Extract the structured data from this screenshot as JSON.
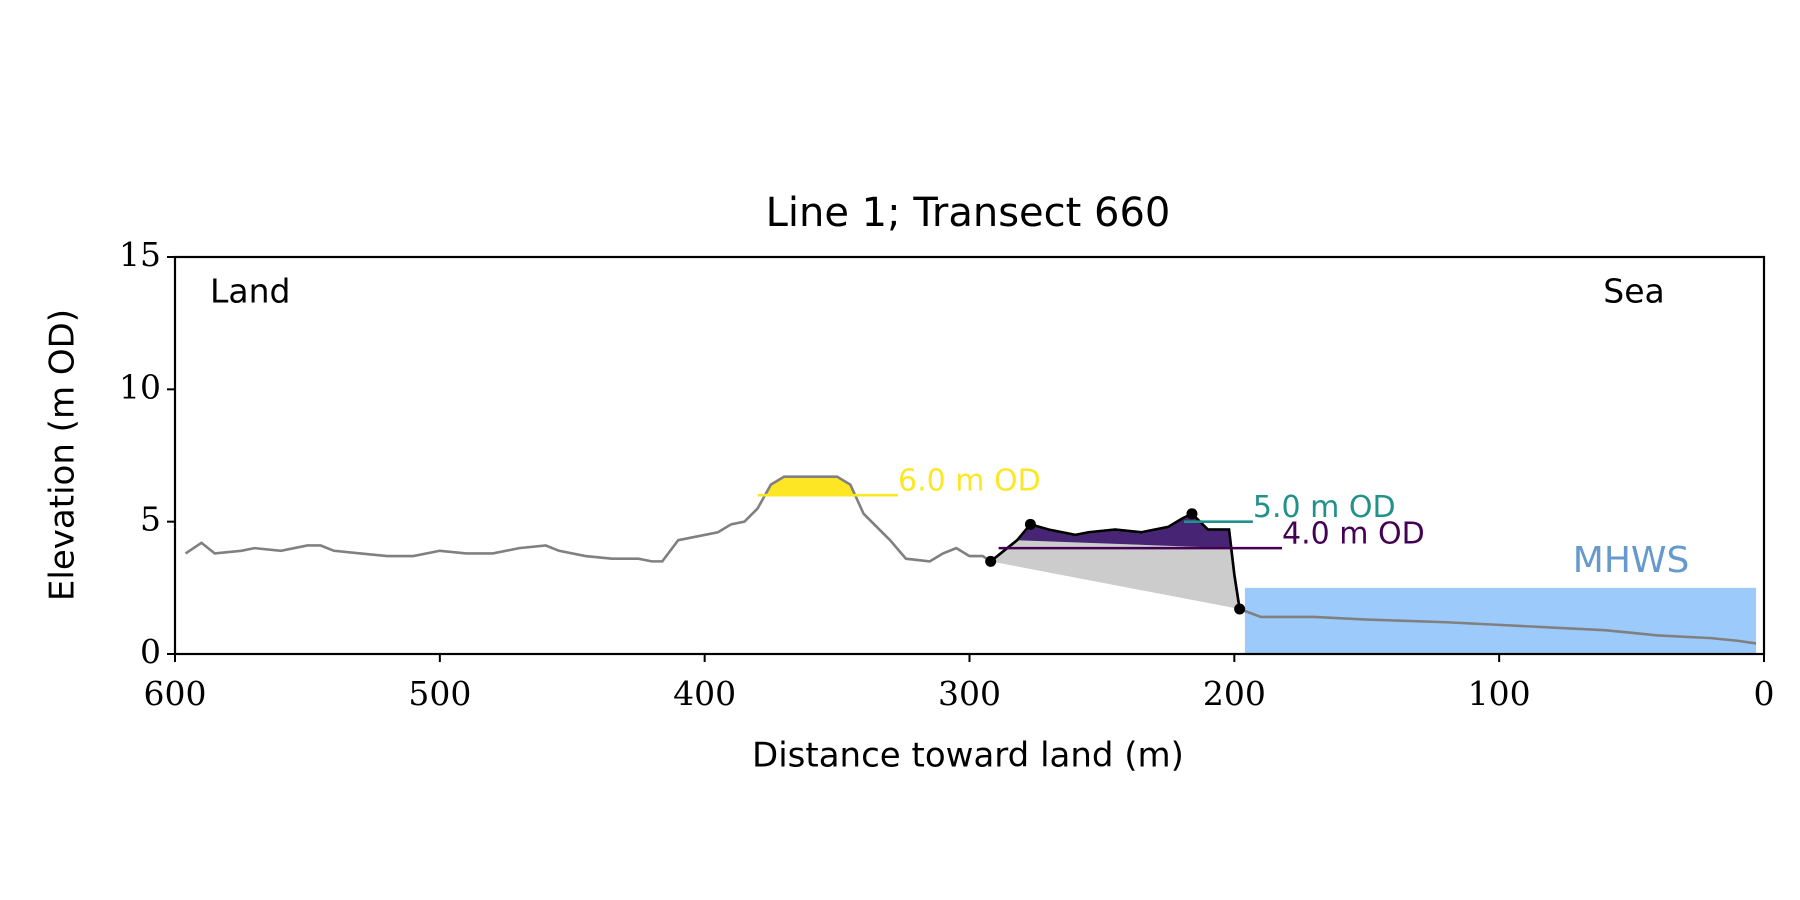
{
  "chart_data": {
    "type": "profile",
    "title": "Line 1; Transect 660",
    "xlabel": "Distance toward land (m)",
    "ylabel": "Elevation (m OD)",
    "xlim": [
      600,
      0
    ],
    "ylim": [
      0,
      15
    ],
    "xticks": [
      600,
      500,
      400,
      300,
      200,
      100,
      0
    ],
    "yticks": [
      0,
      5,
      10,
      15
    ],
    "annotations": {
      "left": "Land",
      "right": "Sea"
    },
    "profile": {
      "color": "#808080",
      "x": [
        596,
        590,
        585,
        575,
        570,
        560,
        550,
        545,
        540,
        530,
        520,
        510,
        500,
        490,
        480,
        470,
        460,
        455,
        445,
        435,
        425,
        420,
        416,
        410,
        405,
        395,
        390,
        385,
        380,
        375,
        370,
        360,
        350,
        345,
        340,
        330,
        324,
        315,
        310,
        305,
        300,
        295,
        292,
        282,
        277,
        270,
        260,
        255,
        245,
        235,
        225,
        220,
        216,
        210,
        205,
        202,
        200,
        198,
        190,
        170,
        150,
        120,
        100,
        80,
        60,
        50,
        40,
        20,
        10,
        3
      ],
      "y": [
        3.8,
        4.2,
        3.8,
        3.9,
        4.0,
        3.9,
        4.1,
        4.1,
        3.9,
        3.8,
        3.7,
        3.7,
        3.9,
        3.8,
        3.8,
        4.0,
        4.1,
        3.9,
        3.7,
        3.6,
        3.6,
        3.5,
        3.5,
        4.3,
        4.4,
        4.6,
        4.9,
        5.0,
        5.5,
        6.4,
        6.7,
        6.7,
        6.7,
        6.4,
        5.3,
        4.3,
        3.6,
        3.5,
        3.8,
        4.0,
        3.7,
        3.7,
        3.5,
        4.3,
        4.9,
        4.7,
        4.5,
        4.6,
        4.7,
        4.6,
        4.8,
        5.1,
        5.3,
        4.7,
        4.7,
        4.7,
        3.0,
        1.7,
        1.4,
        1.4,
        1.3,
        1.2,
        1.1,
        1.0,
        0.9,
        0.8,
        0.7,
        0.6,
        0.5,
        0.4
      ]
    },
    "crest_points": {
      "color": "#000000",
      "x": [
        292,
        277,
        216,
        198
      ],
      "y": [
        3.5,
        4.9,
        5.3,
        1.7
      ]
    },
    "wedge_color": "#cccccc",
    "levels": [
      {
        "value": 4,
        "label": "4.0 m OD",
        "color": "#440154",
        "fill": "#482475",
        "extent": [
          289,
          182
        ]
      },
      {
        "value": 5,
        "label": "5.0 m OD",
        "color": "#21918c",
        "fill": "#21918c",
        "extent": [
          219,
          193
        ]
      },
      {
        "value": 6,
        "label": "6.0 m OD",
        "color": "#fde725",
        "fill": "#fde725",
        "extent": [
          380,
          327
        ]
      }
    ],
    "mhws": {
      "label": "MHWS",
      "value": 2.5,
      "extent": [
        196,
        3
      ],
      "color": "#9ccbfb",
      "label_color": "#6699cc"
    }
  }
}
